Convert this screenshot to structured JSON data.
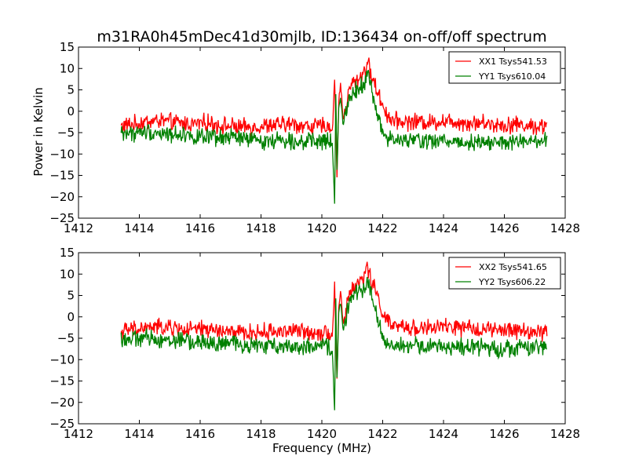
{
  "figure": {
    "title": "m31RA0h45mDec41d30mjlb, ID:136434 on-off/off spectrum",
    "xlabel": "Frequency (MHz)",
    "ylabel": "Power in Kelvin"
  },
  "chart_data": [
    {
      "type": "line",
      "xlim": [
        1412,
        1428
      ],
      "ylim": [
        -25,
        15
      ],
      "xticks": [
        1412,
        1414,
        1416,
        1418,
        1420,
        1422,
        1424,
        1426,
        1428
      ],
      "yticks": [
        -25,
        -20,
        -15,
        -10,
        -5,
        0,
        5,
        10,
        15
      ],
      "ylabel": "Power in Kelvin",
      "xlabel": "",
      "grid": false,
      "legend": "top-right",
      "series": [
        {
          "name": "XX1 Tsys541.53",
          "color": "#ff0000",
          "x": [
            1413.4,
            1413.8,
            1414.2,
            1414.6,
            1415.0,
            1415.4,
            1415.8,
            1416.2,
            1416.6,
            1417.0,
            1417.4,
            1417.8,
            1418.2,
            1418.6,
            1419.0,
            1419.4,
            1419.8,
            1420.2,
            1420.35,
            1420.42,
            1420.46,
            1420.5,
            1420.55,
            1420.62,
            1420.7,
            1420.8,
            1420.9,
            1421.0,
            1421.2,
            1421.4,
            1421.5,
            1421.6,
            1421.8,
            1422.0,
            1422.2,
            1422.4,
            1422.8,
            1423.2,
            1423.6,
            1424.0,
            1424.4,
            1424.8,
            1425.2,
            1425.6,
            1426.0,
            1426.4,
            1426.8,
            1427.2,
            1427.4
          ],
          "y": [
            -3.5,
            -3.0,
            -2.5,
            -2.2,
            -2.5,
            -2.8,
            -3.0,
            -2.6,
            -3.2,
            -3.5,
            -3.8,
            -3.6,
            -3.4,
            -3.2,
            -3.0,
            -3.4,
            -3.6,
            -3.3,
            -4.5,
            8.0,
            -5.0,
            -16.0,
            2.0,
            6.5,
            -2.0,
            1.0,
            5.0,
            6.5,
            7.5,
            9.5,
            11.5,
            9.0,
            5.0,
            1.5,
            -1.5,
            -2.2,
            -2.5,
            -2.4,
            -2.6,
            -2.2,
            -2.4,
            -2.8,
            -2.6,
            -3.0,
            -3.2,
            -3.0,
            -3.4,
            -3.6,
            -3.2
          ]
        },
        {
          "name": "YY1 Tsys610.04",
          "color": "#008000",
          "x": [
            1413.4,
            1413.8,
            1414.2,
            1414.6,
            1415.0,
            1415.4,
            1415.8,
            1416.2,
            1416.6,
            1417.0,
            1417.4,
            1417.8,
            1418.2,
            1418.6,
            1419.0,
            1419.4,
            1419.8,
            1420.2,
            1420.35,
            1420.42,
            1420.46,
            1420.5,
            1420.55,
            1420.62,
            1420.7,
            1420.8,
            1420.9,
            1421.0,
            1421.2,
            1421.4,
            1421.5,
            1421.6,
            1421.8,
            1422.0,
            1422.2,
            1422.4,
            1422.8,
            1423.2,
            1423.6,
            1424.0,
            1424.4,
            1424.8,
            1425.2,
            1425.6,
            1426.0,
            1426.4,
            1426.8,
            1427.2,
            1427.4
          ],
          "y": [
            -5.0,
            -5.2,
            -4.8,
            -5.0,
            -5.5,
            -5.2,
            -6.0,
            -6.2,
            -6.5,
            -6.0,
            -6.4,
            -6.8,
            -7.0,
            -6.6,
            -6.8,
            -7.0,
            -7.2,
            -7.0,
            -8.0,
            -22.0,
            5.0,
            -15.0,
            0.5,
            3.5,
            -3.0,
            0.0,
            3.0,
            4.5,
            5.5,
            7.0,
            9.0,
            6.0,
            0.0,
            -5.0,
            -6.5,
            -6.8,
            -7.0,
            -6.6,
            -7.2,
            -6.8,
            -7.0,
            -7.4,
            -7.0,
            -7.2,
            -7.6,
            -7.0,
            -7.4,
            -7.2,
            -7.0
          ]
        }
      ]
    },
    {
      "type": "line",
      "xlim": [
        1412,
        1428
      ],
      "ylim": [
        -25,
        15
      ],
      "xticks": [
        1412,
        1414,
        1416,
        1418,
        1420,
        1422,
        1424,
        1426,
        1428
      ],
      "yticks": [
        -25,
        -20,
        -15,
        -10,
        -5,
        0,
        5,
        10,
        15
      ],
      "ylabel": "",
      "xlabel": "Frequency (MHz)",
      "grid": false,
      "legend": "top-right",
      "series": [
        {
          "name": "XX2 Tsys541.65",
          "color": "#ff0000",
          "x": [
            1413.4,
            1413.8,
            1414.2,
            1414.6,
            1415.0,
            1415.4,
            1415.8,
            1416.2,
            1416.6,
            1417.0,
            1417.4,
            1417.8,
            1418.2,
            1418.6,
            1419.0,
            1419.4,
            1419.8,
            1420.2,
            1420.35,
            1420.42,
            1420.46,
            1420.5,
            1420.55,
            1420.62,
            1420.7,
            1420.8,
            1420.9,
            1421.0,
            1421.2,
            1421.4,
            1421.5,
            1421.6,
            1421.8,
            1422.0,
            1422.2,
            1422.4,
            1422.8,
            1423.2,
            1423.6,
            1424.0,
            1424.4,
            1424.8,
            1425.2,
            1425.6,
            1426.0,
            1426.4,
            1426.8,
            1427.2,
            1427.4
          ],
          "y": [
            -3.4,
            -3.0,
            -2.6,
            -2.4,
            -2.6,
            -2.9,
            -3.1,
            -2.8,
            -3.3,
            -3.6,
            -3.8,
            -3.7,
            -3.5,
            -3.3,
            -3.2,
            -3.5,
            -3.7,
            -3.4,
            -4.4,
            8.0,
            -5.2,
            -15.5,
            2.2,
            6.0,
            -1.8,
            1.2,
            5.2,
            6.6,
            7.8,
            9.8,
            11.6,
            9.2,
            5.2,
            1.2,
            -1.6,
            -2.3,
            -2.6,
            -2.5,
            -2.7,
            -2.3,
            -2.5,
            -2.9,
            -2.7,
            -3.1,
            -3.3,
            -3.1,
            -3.5,
            -3.7,
            -3.3
          ]
        },
        {
          "name": "YY2 Tsys606.22",
          "color": "#008000",
          "x": [
            1413.4,
            1413.8,
            1414.2,
            1414.6,
            1415.0,
            1415.4,
            1415.8,
            1416.2,
            1416.6,
            1417.0,
            1417.4,
            1417.8,
            1418.2,
            1418.6,
            1419.0,
            1419.4,
            1419.8,
            1420.2,
            1420.35,
            1420.42,
            1420.46,
            1420.5,
            1420.55,
            1420.62,
            1420.7,
            1420.8,
            1420.9,
            1421.0,
            1421.2,
            1421.4,
            1421.5,
            1421.6,
            1421.8,
            1422.0,
            1422.2,
            1422.4,
            1422.8,
            1423.2,
            1423.6,
            1424.0,
            1424.4,
            1424.8,
            1425.2,
            1425.6,
            1426.0,
            1426.4,
            1426.8,
            1427.2,
            1427.4
          ],
          "y": [
            -5.0,
            -5.3,
            -4.9,
            -5.1,
            -5.6,
            -5.3,
            -6.0,
            -6.1,
            -6.4,
            -6.1,
            -6.5,
            -6.7,
            -6.9,
            -6.6,
            -6.8,
            -7.0,
            -7.1,
            -6.9,
            -8.2,
            -22.5,
            5.0,
            -15.5,
            0.5,
            3.5,
            -3.2,
            0.2,
            3.2,
            4.6,
            5.6,
            7.2,
            9.0,
            6.2,
            0.2,
            -5.0,
            -6.4,
            -6.7,
            -6.9,
            -6.6,
            -7.1,
            -6.8,
            -7.0,
            -7.3,
            -7.0,
            -7.2,
            -7.5,
            -7.0,
            -7.3,
            -7.1,
            -7.0
          ]
        }
      ]
    }
  ]
}
